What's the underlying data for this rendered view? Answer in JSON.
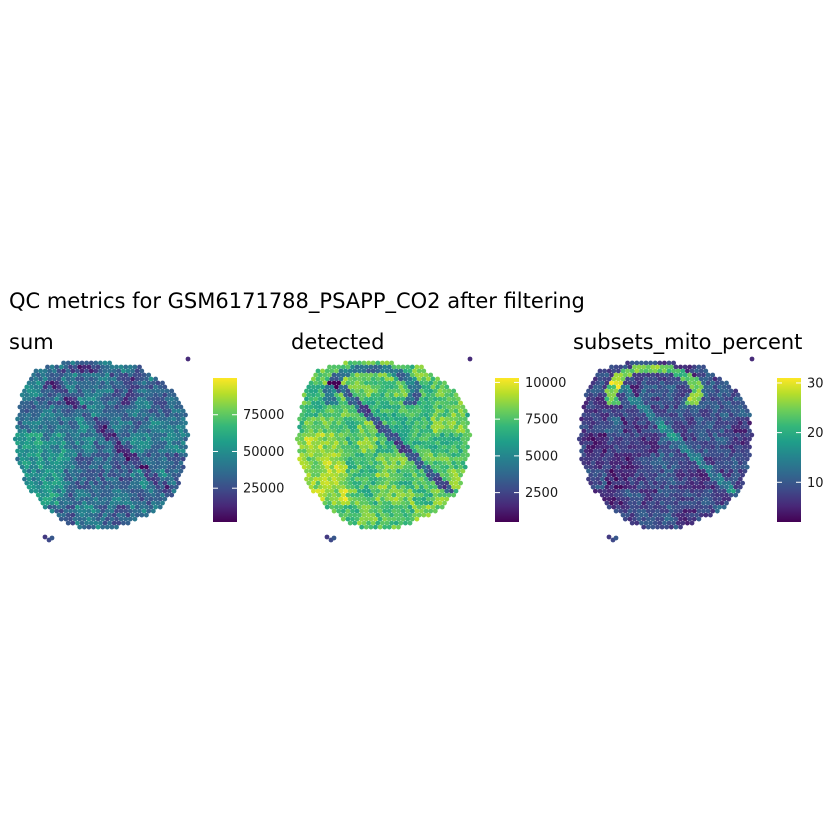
{
  "title": "QC metrics for GSM6171788_PSAPP_CO2 after filtering",
  "palette": [
    "#440154",
    "#482878",
    "#3e4a89",
    "#31688e",
    "#26828e",
    "#1f9e89",
    "#35b779",
    "#6ece58",
    "#b5de2b",
    "#fde725"
  ],
  "chart_data": [
    {
      "type": "heatmap",
      "title": "sum",
      "colorbar": {
        "range": [
          2000,
          100000
        ],
        "ticks": [
          25000,
          50000,
          75000
        ],
        "tick_labels": [
          "25000",
          "50000",
          "75000"
        ]
      },
      "value_range": [
        2000,
        100000
      ],
      "typical_value": 42000,
      "grid": false
    },
    {
      "type": "heatmap",
      "title": "detected",
      "colorbar": {
        "range": [
          500,
          10300
        ],
        "ticks": [
          2500,
          5000,
          7500,
          10000
        ],
        "tick_labels": [
          "2500",
          "5000",
          "7500",
          "10000"
        ]
      },
      "value_range": [
        500,
        10300
      ],
      "typical_value": 8000,
      "grid": false
    },
    {
      "type": "heatmap",
      "title": "subsets_mito_percent",
      "colorbar": {
        "range": [
          2,
          31
        ],
        "ticks": [
          10,
          20,
          30
        ],
        "tick_labels": [
          "10",
          "20",
          "30"
        ]
      },
      "value_range": [
        2,
        31
      ],
      "typical_value": 12,
      "grid": false
    }
  ]
}
